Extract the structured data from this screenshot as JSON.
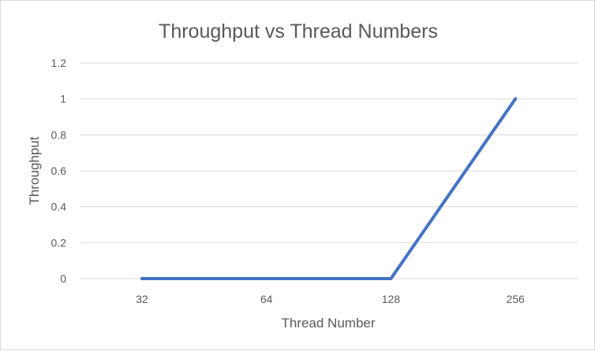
{
  "chart_data": {
    "type": "line",
    "title": "Throughput vs Thread Numbers",
    "xlabel": "Thread Number",
    "ylabel": "Throughput",
    "categories": [
      "32",
      "64",
      "128",
      "256"
    ],
    "series": [
      {
        "values": [
          0,
          0,
          0,
          1
        ]
      }
    ],
    "ylim": [
      0,
      1.2
    ],
    "yticks": [
      "0",
      "0.2",
      "0.4",
      "0.6",
      "0.8",
      "1",
      "1.2"
    ],
    "grid": true,
    "legend": "none",
    "colors": {
      "series": "#4472c4",
      "grid": "#d9d9d9",
      "text": "#595959"
    }
  }
}
